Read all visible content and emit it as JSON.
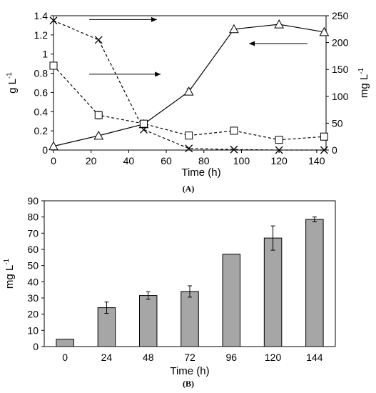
{
  "chart_data": [
    {
      "type": "line",
      "panel_label": "(A)",
      "xlabel": "Time (h)",
      "ylabel_left": "g L",
      "ylabel_right": "mg L",
      "ylabel_exponent": "-1",
      "xlim": [
        0,
        145
      ],
      "ylim_left": [
        0,
        1.4
      ],
      "ylim_right": [
        0,
        250
      ],
      "x_ticks": [
        "0",
        "20",
        "40",
        "60",
        "80",
        "100",
        "120",
        "140"
      ],
      "y_left_ticks": [
        "0",
        "0.2",
        "0.4",
        "0.6",
        "0.8",
        "1",
        "1.2",
        "1.4"
      ],
      "y_right_ticks": [
        "0",
        "50",
        "100",
        "150",
        "200",
        "250"
      ],
      "grid": false,
      "series": [
        {
          "marker": "triangle",
          "line": "solid",
          "axis": "left",
          "x": [
            0,
            24,
            48,
            72,
            96,
            120,
            144
          ],
          "y": [
            0.04,
            0.15,
            0.27,
            0.61,
            1.26,
            1.31,
            1.23
          ],
          "err": [
            0,
            0,
            0,
            0.03,
            0,
            0,
            0
          ]
        },
        {
          "marker": "x",
          "line": "dashed",
          "axis": "right",
          "x": [
            0,
            24,
            48,
            72,
            96,
            120,
            144
          ],
          "y": [
            241,
            205,
            38,
            3,
            1,
            0,
            0
          ],
          "err": [
            0,
            0,
            0,
            0,
            0,
            0,
            0
          ]
        },
        {
          "marker": "square",
          "line": "dashed",
          "axis": "right",
          "x": [
            0,
            24,
            48,
            72,
            96,
            120,
            144
          ],
          "y": [
            157,
            65,
            49,
            27,
            36,
            19,
            25
          ],
          "err": [
            0,
            7,
            0,
            0,
            0,
            0,
            0
          ]
        }
      ],
      "annotations": [
        {
          "type": "arrow",
          "direction": "right",
          "x": [
            19,
            55
          ],
          "y": 1.36
        },
        {
          "type": "arrow",
          "direction": "right",
          "x": [
            19,
            57
          ],
          "y": 0.79
        },
        {
          "type": "arrow",
          "direction": "left",
          "x": [
            135,
            104
          ],
          "y": 1.11
        }
      ]
    },
    {
      "type": "bar",
      "panel_label": "(B)",
      "xlabel": "Time (h)",
      "ylabel": "mg L",
      "ylabel_exponent": "-1",
      "categories": [
        "0",
        "24",
        "48",
        "72",
        "96",
        "120",
        "144"
      ],
      "values": [
        4.5,
        24,
        31.5,
        34,
        57,
        67,
        78.5
      ],
      "errors": [
        0,
        3.5,
        2.3,
        3.5,
        0,
        7.5,
        1.5
      ],
      "ylim": [
        0,
        90
      ],
      "y_ticks": [
        "0",
        "10",
        "20",
        "30",
        "40",
        "50",
        "60",
        "70",
        "80",
        "90"
      ],
      "bar_color": "#a6a6a6",
      "grid": false
    }
  ]
}
